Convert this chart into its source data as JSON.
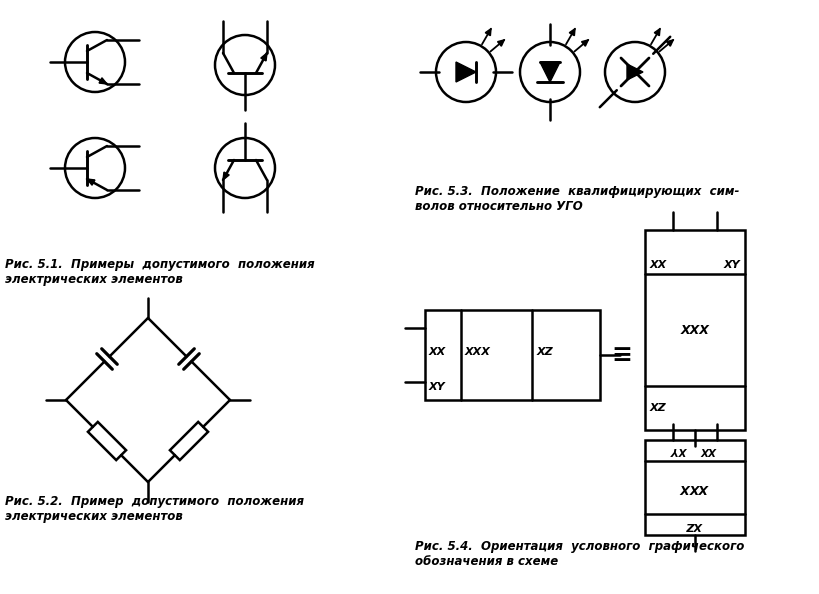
{
  "bg_color": "#ffffff",
  "fig_width": 8.19,
  "fig_height": 5.94,
  "dpi": 100,
  "caption_51": "Рис. 5.1.  Примеры  допустимого  положения\nэлектрических элементов",
  "caption_52": "Рис. 5.2.  Пример  допустимого  положения\nэлектрических элементов",
  "caption_53": "Рис. 5.3.  Положение  квалифицирующих  сим-\nволов относительно УГО",
  "caption_54": "Рис. 5.4.  Ориентация  условного  графического\nобозначения в схеме",
  "text_color": "#000000",
  "line_color": "#000000",
  "lw": 1.8,
  "lw_thin": 1.2
}
